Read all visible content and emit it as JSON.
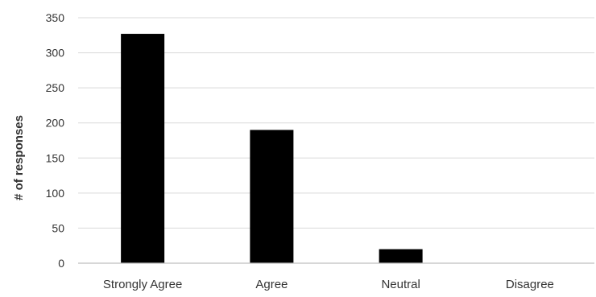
{
  "chart_data": {
    "type": "bar",
    "title": "",
    "xlabel": "",
    "ylabel": "# of responses",
    "categories": [
      "Strongly Agree",
      "Agree",
      "Neutral",
      "Disagree"
    ],
    "values": [
      327,
      190,
      20,
      0
    ],
    "ylim": [
      0,
      350
    ],
    "yticks": [
      "0",
      "50",
      "100",
      "150",
      "200",
      "250",
      "300",
      "350"
    ],
    "grid": true,
    "legend": "none"
  },
  "colors": {
    "bar": "#000000",
    "grid": "#d9d9d9",
    "axis": "#bfbfbf",
    "text": "#333333"
  }
}
